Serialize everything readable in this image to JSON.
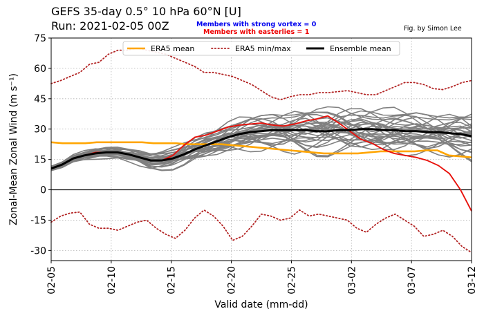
{
  "title_line1": "GEFS 35-day 0.5° 10 hPa 60°N [U]",
  "title_line2": "Run: 2021-02-05 00Z",
  "annotation_strong": "Members with strong vortex = 0",
  "annotation_easterlies": "Members with easterlies = 1",
  "credit": "Fig. by Simon Lee",
  "colors": {
    "era5_mean": "#FFA500",
    "era5_minmax": "#B22222",
    "ensemble_mean": "#000000",
    "members": "#808080",
    "easterly_member": "#E8120C",
    "strong_label": "#0000EE",
    "easterly_label": "#EE0000"
  },
  "chart_data": {
    "type": "line",
    "title": "GEFS 35-day 0.5° 10 hPa 60°N [U]",
    "xlabel": "Valid date (mm-dd)",
    "ylabel": "Zonal-Mean Zonal Wind (m s⁻¹)",
    "x_start": "2021-02-05",
    "xlim": [
      "2021-02-05",
      "2021-03-12"
    ],
    "ylim": [
      -35,
      75
    ],
    "xticks": [
      "02-05",
      "02-10",
      "02-15",
      "02-20",
      "02-25",
      "03-02",
      "03-07",
      "03-12"
    ],
    "yticks": [
      -30,
      -15,
      0,
      15,
      30,
      45,
      60,
      75
    ],
    "grid": true,
    "legend_position": "top-center",
    "legend": [
      "ERA5 mean",
      "ERA5 min/max",
      "Ensemble mean"
    ],
    "era5_mean": [
      23.5,
      23,
      23,
      23,
      23.5,
      23.5,
      23.5,
      23.5,
      23.5,
      23,
      23,
      23,
      22.5,
      22.5,
      22.5,
      22.5,
      22,
      21.5,
      21,
      20.5,
      20,
      19.5,
      19,
      18.5,
      18,
      18,
      18,
      18,
      18.5,
      19,
      19,
      19,
      19,
      19.5,
      19.5,
      17,
      16.5,
      16
    ],
    "era5_max": [
      52.5,
      54,
      56,
      58,
      62,
      63,
      67,
      69,
      69,
      70,
      69,
      68,
      67,
      65,
      63,
      61,
      58,
      58,
      57,
      56,
      54,
      52,
      49,
      46,
      44.5,
      46,
      47,
      47,
      48,
      48,
      48.5,
      49,
      48,
      47,
      47,
      49,
      51,
      53,
      53,
      52,
      50,
      49.5,
      51,
      53,
      54
    ],
    "era5_min": [
      -16,
      -13,
      -11.5,
      -11,
      -17,
      -19,
      -19,
      -20,
      -18,
      -16,
      -15,
      -19,
      -22,
      -24,
      -20,
      -14,
      -10,
      -13,
      -18,
      -25,
      -23,
      -18,
      -12,
      -13,
      -15,
      -14,
      -10,
      -13,
      -12,
      -13,
      -14,
      -15,
      -19,
      -21,
      -17,
      -14,
      -12,
      -15,
      -18,
      -23,
      -22,
      -20,
      -23,
      -28,
      -31
    ],
    "ensemble_mean": [
      10.5,
      12.5,
      15.5,
      17,
      18,
      18.5,
      18.5,
      17.5,
      16,
      14.5,
      14.5,
      15.5,
      17.5,
      20,
      22,
      24,
      26,
      27.5,
      28.5,
      29,
      29.5,
      29.5,
      29.5,
      29.5,
      29,
      29,
      29.5,
      29.5,
      30,
      30,
      29.5,
      29.5,
      29,
      29,
      28.5,
      28.5,
      28,
      27.5,
      26.5
    ],
    "easterly_member": [
      10.5,
      12.5,
      15.5,
      17,
      18.5,
      18.5,
      18.5,
      17.5,
      16,
      14.5,
      14.5,
      17,
      22,
      26,
      27,
      29,
      31,
      32,
      32.5,
      33,
      32,
      31.5,
      32.5,
      34,
      35,
      36.5,
      33,
      29,
      25,
      23,
      20,
      18,
      17,
      16,
      14.5,
      12,
      8,
      0,
      -10.5
    ],
    "members_count": 30,
    "members_value_range": [
      9,
      41
    ]
  }
}
